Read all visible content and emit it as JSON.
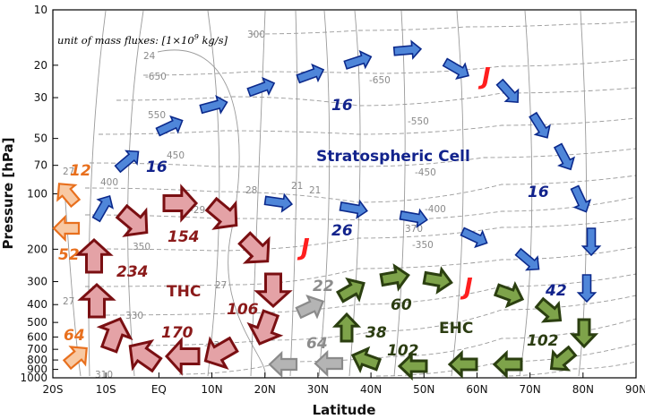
{
  "axes": {
    "xlabel": "Latitude",
    "ylabel": "Pressure [hPa]",
    "x_ticks": [
      "20S",
      "10S",
      "EQ",
      "10N",
      "20N",
      "30N",
      "40N",
      "50N",
      "60N",
      "70N",
      "80N",
      "90N"
    ],
    "y_ticks": [
      "10",
      "20",
      "30",
      "50",
      "70",
      "100",
      "200",
      "300",
      "400",
      "500",
      "600",
      "700",
      "800",
      "900",
      "1000"
    ]
  },
  "note": "unit of mass fluxes: [1×10",
  "note_exp": "9",
  "note_tail": " kg/s]",
  "cells": {
    "stratospheric": "Stratospheric Cell",
    "thc": "THC",
    "ehc": "EHC"
  },
  "jet_label": "J",
  "contour_labels": [
    "-650",
    "-650",
    "550",
    "-550",
    "450",
    "-450",
    "400",
    "-400",
    "350",
    "-350",
    "370",
    "330",
    "-330",
    "310",
    "300",
    "27",
    "27",
    "27",
    "28",
    "21",
    "21",
    "24",
    "-29"
  ],
  "flux_values": {
    "strat_upper": "16",
    "strat_left": "16",
    "strat_right": "16",
    "strat_lower": "26",
    "strat_down": "42",
    "thc_up": "234",
    "thc_top": "154",
    "thc_right": "106",
    "thc_bottom": "170",
    "orange_top": "12",
    "orange_mid": "52",
    "orange_bottom": "64",
    "gray_up": "22",
    "gray_bottom": "64",
    "ehc_up": "38",
    "ehc_top": "60",
    "ehc_bottom": "102",
    "ehc_right": "102"
  },
  "colors": {
    "stratospheric": "#4f86d9",
    "stratospheric_edge": "#0c2a8c",
    "thc": "#e4a2a6",
    "thc_edge": "#7a0f12",
    "orange": "#f8c9a3",
    "orange_edge": "#e8701e",
    "gray": "#b4b4b4",
    "gray_edge": "#8a8a8a",
    "ehc": "#7ea34a",
    "ehc_edge": "#2b3f10",
    "jet": "#ff1e1e",
    "stratospheric_text": "#12238c",
    "thc_text": "#8b1a1a",
    "ehc_text": "#2c3d12",
    "orange_text": "#e8701e",
    "gray_text": "#8c8c8c"
  }
}
